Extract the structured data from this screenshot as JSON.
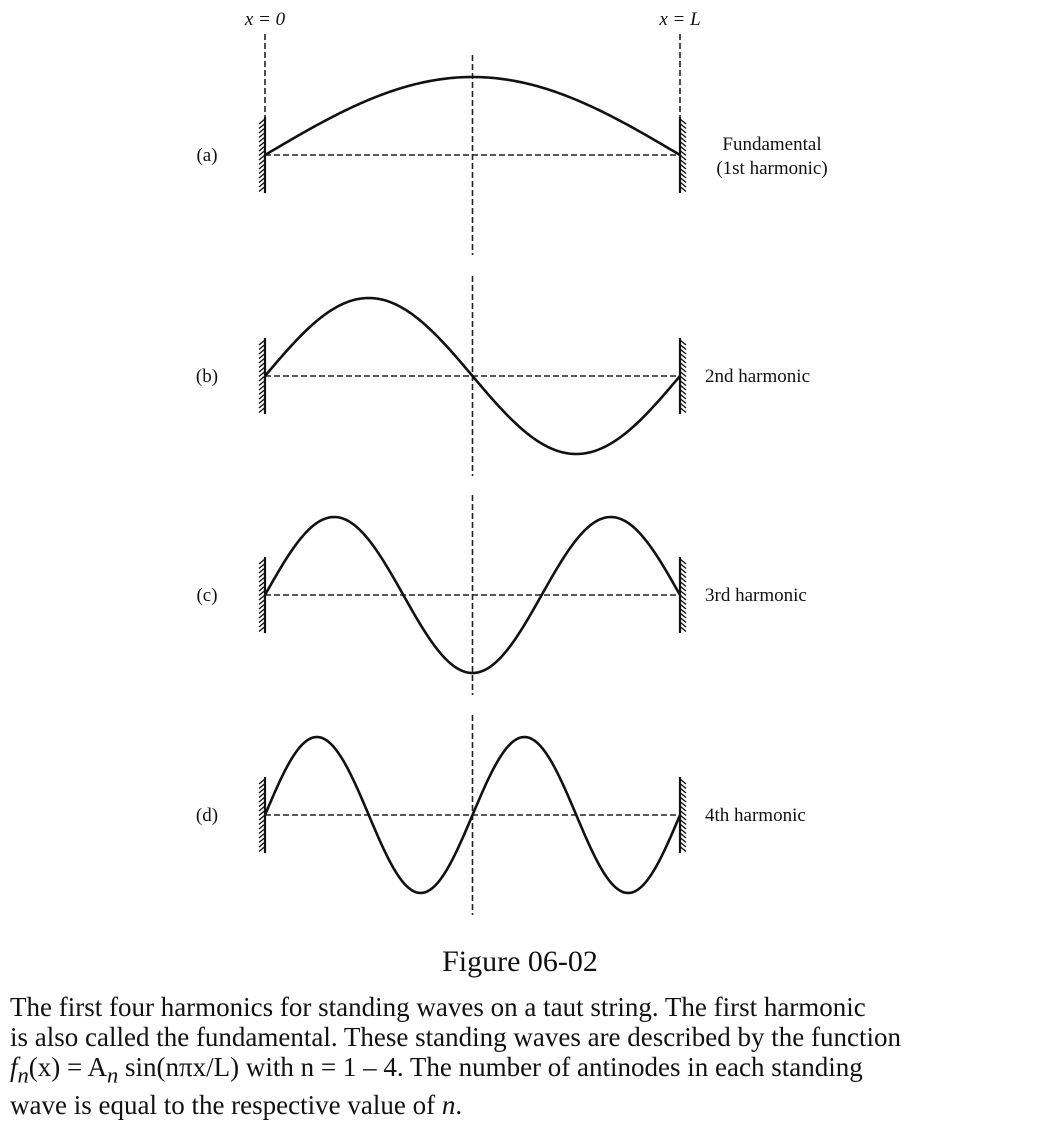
{
  "top_labels": {
    "left": "x = 0",
    "right": "x = L"
  },
  "panels": [
    {
      "tag": "(a)",
      "name_lines": [
        "Fundamental",
        "(1st harmonic)"
      ],
      "n": 1
    },
    {
      "tag": "(b)",
      "name_lines": [
        "2nd harmonic"
      ],
      "n": 2
    },
    {
      "tag": "(c)",
      "name_lines": [
        "3rd harmonic"
      ],
      "n": 3
    },
    {
      "tag": "(d)",
      "name_lines": [
        "4th harmonic"
      ],
      "n": 4
    }
  ],
  "figure_title": "Figure 06-02",
  "caption": {
    "line1": "The first four harmonics for standing waves on a taut string. The first harmonic",
    "line2": "is also called the fundamental. These standing waves are described by the function",
    "line3_formula_lhs": "f",
    "line3_formula_sub": "n",
    "line3_formula_arg": "(x) = A",
    "line3_formula_sub2": "n",
    "line3_formula_rest": " sin(nπx/L) with n = 1 – 4. The number of antinodes in each standing",
    "line4_text": "wave is equal to the respective value of ",
    "line4_var": "n",
    "line4_end": "."
  }
}
